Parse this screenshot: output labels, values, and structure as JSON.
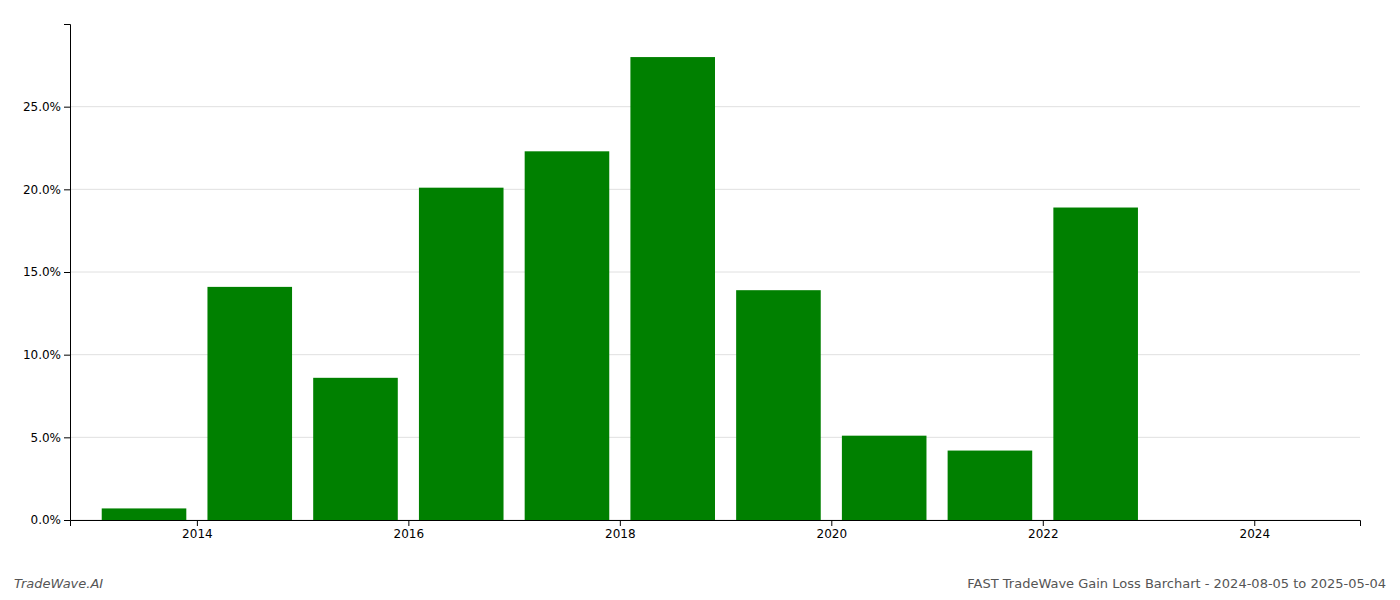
{
  "chart_data": {
    "type": "bar",
    "x": [
      2013.5,
      2014.5,
      2015.5,
      2016.5,
      2017.5,
      2018.5,
      2019.5,
      2020.5,
      2021.5,
      2022.5
    ],
    "values": [
      0.007,
      0.141,
      0.086,
      0.201,
      0.223,
      0.28,
      0.139,
      0.051,
      0.042,
      0.189
    ],
    "color": "#008000",
    "xlim": [
      2012.8,
      2025.0
    ],
    "xticks": [
      2014,
      2016,
      2018,
      2020,
      2022,
      2024
    ],
    "ylim": [
      0,
      0.3
    ],
    "yticks": [
      {
        "value": 0.0,
        "label": "0.0%"
      },
      {
        "value": 0.05,
        "label": "5.0%"
      },
      {
        "value": 0.1,
        "label": "10.0%"
      },
      {
        "value": 0.15,
        "label": "15.0%"
      },
      {
        "value": 0.2,
        "label": "20.0%"
      },
      {
        "value": 0.25,
        "label": "25.0%"
      }
    ],
    "grid": true,
    "annotations": [
      "TradeWave.AI",
      "FAST TradeWave Gain Loss Barchart - 2024-08-05 to 2025-05-04"
    ]
  }
}
